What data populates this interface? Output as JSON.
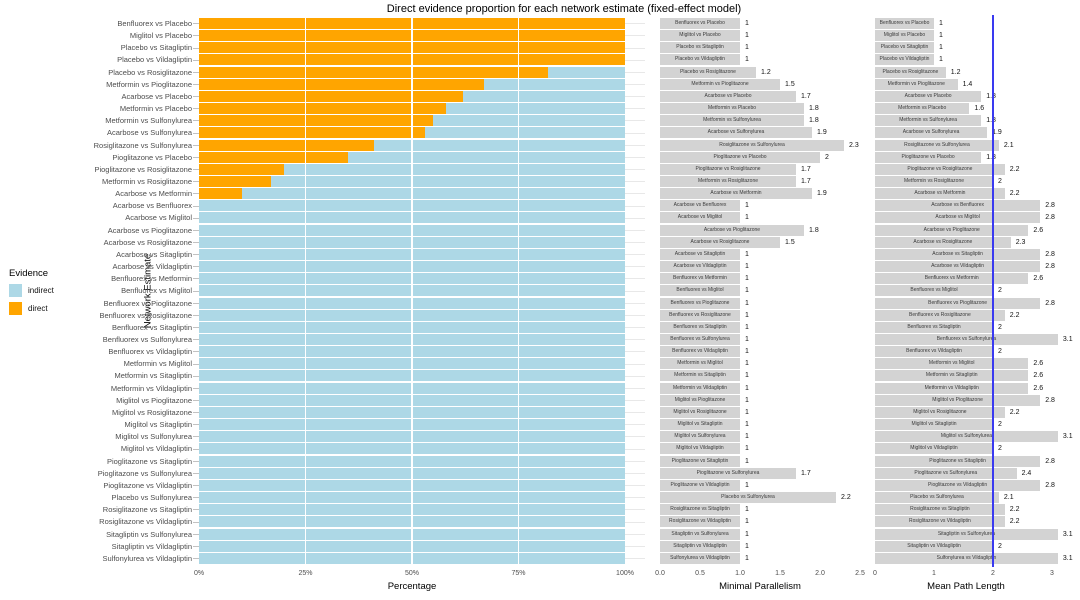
{
  "chart_data": {
    "type": "bar",
    "orientation": "horizontal",
    "title": "Direct evidence proportion for each network estimate (fixed-effect model)",
    "ylabel": "Network Estimate",
    "legend": {
      "title": "Evidence",
      "position": "left",
      "items": [
        {
          "label": "indirect",
          "color": "#ADD8E6"
        },
        {
          "label": "direct",
          "color": "#FFA500"
        }
      ]
    },
    "categories": [
      "Benfluorex vs Placebo",
      "Miglitol vs Placebo",
      "Placebo vs Sitagliptin",
      "Placebo vs Vildagliptin",
      "Placebo vs Rosiglitazone",
      "Metformin vs Pioglitazone",
      "Acarbose vs Placebo",
      "Metformin vs Placebo",
      "Metformin vs Sulfonylurea",
      "Acarbose vs Sulfonylurea",
      "Rosiglitazone vs Sulfonylurea",
      "Pioglitazone vs Placebo",
      "Pioglitazone vs Rosiglitazone",
      "Metformin vs Rosiglitazone",
      "Acarbose vs Metformin",
      "Acarbose vs Benfluorex",
      "Acarbose vs Miglitol",
      "Acarbose vs Pioglitazone",
      "Acarbose vs Rosiglitazone",
      "Acarbose vs Sitagliptin",
      "Acarbose vs Vildagliptin",
      "Benfluorex vs Metformin",
      "Benfluorex vs Miglitol",
      "Benfluorex vs Pioglitazone",
      "Benfluorex vs Rosiglitazone",
      "Benfluorex vs Sitagliptin",
      "Benfluorex vs Sulfonylurea",
      "Benfluorex vs Vildagliptin",
      "Metformin vs Miglitol",
      "Metformin vs Sitagliptin",
      "Metformin vs Vildagliptin",
      "Miglitol vs Pioglitazone",
      "Miglitol vs Rosiglitazone",
      "Miglitol vs Sitagliptin",
      "Miglitol vs Sulfonylurea",
      "Miglitol vs Vildagliptin",
      "Pioglitazone vs Sitagliptin",
      "Pioglitazone vs Sulfonylurea",
      "Pioglitazone vs Vildagliptin",
      "Placebo vs Sulfonylurea",
      "Rosiglitazone vs Sitagliptin",
      "Rosiglitazone vs Vildagliptin",
      "Sitagliptin vs Sulfonylurea",
      "Sitagliptin vs Vildagliptin",
      "Sulfonylurea vs Vildagliptin"
    ],
    "panels": [
      {
        "name": "direct-evidence-percentage",
        "type": "stacked-bar",
        "xlabel": "Percentage",
        "xticks": [
          "0%",
          "25%",
          "50%",
          "75%",
          "100%"
        ],
        "xlim": [
          0,
          100
        ],
        "series": [
          {
            "name": "direct",
            "color": "#FFA500",
            "values": [
              100,
              100,
              100,
              100,
              82,
              67,
              62,
              58,
              55,
              53,
              41,
              35,
              20,
              17,
              10,
              0,
              0,
              0,
              0,
              0,
              0,
              0,
              0,
              0,
              0,
              0,
              0,
              0,
              0,
              0,
              0,
              0,
              0,
              0,
              0,
              0,
              0,
              0,
              0,
              0,
              0,
              0,
              0,
              0,
              0
            ]
          },
          {
            "name": "indirect",
            "color": "#ADD8E6",
            "values": [
              0,
              0,
              0,
              0,
              18,
              33,
              38,
              42,
              45,
              47,
              59,
              65,
              80,
              83,
              90,
              100,
              100,
              100,
              100,
              100,
              100,
              100,
              100,
              100,
              100,
              100,
              100,
              100,
              100,
              100,
              100,
              100,
              100,
              100,
              100,
              100,
              100,
              100,
              100,
              100,
              100,
              100,
              100,
              100,
              100
            ]
          }
        ]
      },
      {
        "name": "minimal-parallelism",
        "type": "bar",
        "xlabel": "Minimal Parallelism",
        "xticks": [
          "0.0",
          "0.5",
          "1.0",
          "1.5",
          "2.0",
          "2.5"
        ],
        "xlim": [
          0,
          2.5
        ],
        "bar_color": "#D3D3D3",
        "values": [
          1,
          1,
          1,
          1,
          1.2,
          1.5,
          1.7,
          1.8,
          1.8,
          1.9,
          2.3,
          2,
          1.7,
          1.7,
          1.9,
          1,
          1,
          1.8,
          1.5,
          1,
          1,
          1,
          1,
          1,
          1,
          1,
          1,
          1,
          1,
          1,
          1,
          1,
          1,
          1,
          1,
          1,
          1,
          1.7,
          1,
          2.2,
          1,
          1,
          1,
          1,
          1
        ]
      },
      {
        "name": "mean-path-length",
        "type": "bar",
        "xlabel": "Mean Path Length",
        "xticks": [
          "0",
          "1",
          "2",
          "3"
        ],
        "xlim": [
          0,
          3.2
        ],
        "bar_color": "#D3D3D3",
        "refline": {
          "x": 2,
          "color": "#3A3AF0"
        },
        "values": [
          1,
          1,
          1,
          1,
          1.2,
          1.4,
          1.8,
          1.6,
          1.8,
          1.9,
          2.1,
          1.8,
          2.2,
          2,
          2.2,
          2.8,
          2.8,
          2.6,
          2.3,
          2.8,
          2.8,
          2.6,
          2,
          2.8,
          2.2,
          2,
          3.1,
          2,
          2.6,
          2.6,
          2.6,
          2.8,
          2.2,
          2,
          3.1,
          2,
          2.8,
          2.4,
          2.8,
          2.1,
          2.2,
          2.2,
          3.1,
          2,
          3.1
        ]
      }
    ]
  }
}
